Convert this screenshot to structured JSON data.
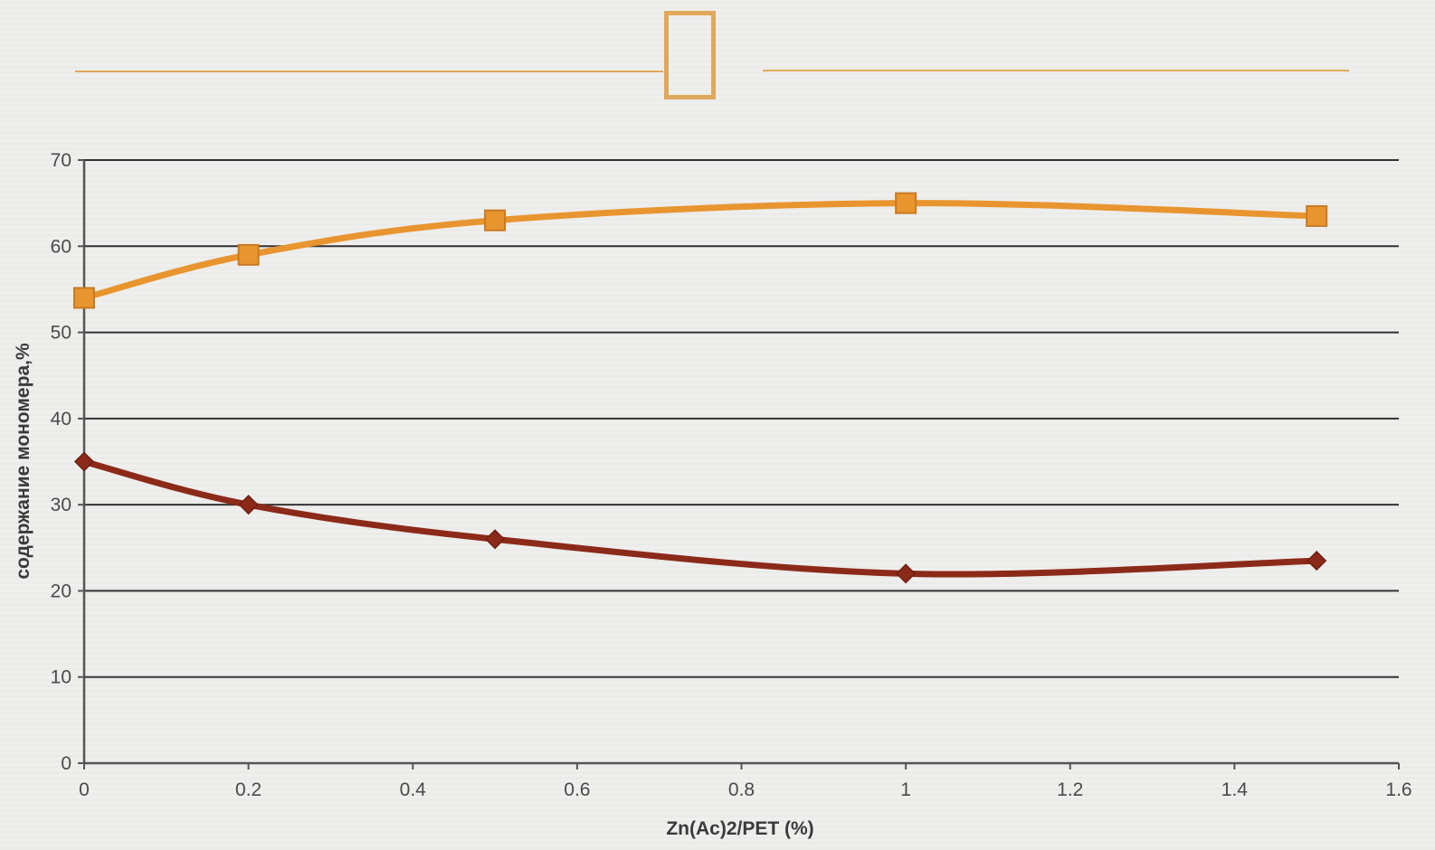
{
  "decoration": {
    "accent_color": "#e0a85c"
  },
  "chart_data": {
    "type": "line",
    "title": "",
    "xlabel": "Zn(Ac)2/PET (%)",
    "ylabel": "содержание мономера,%",
    "xlim": [
      0,
      1.6
    ],
    "ylim": [
      0,
      70
    ],
    "x_ticks": [
      "0",
      "0.2",
      "0.4",
      "0.6",
      "0.8",
      "1",
      "1.2",
      "1.4",
      "1.6"
    ],
    "y_ticks": [
      "0",
      "10",
      "20",
      "30",
      "40",
      "50",
      "60",
      "70"
    ],
    "grid": "horizontal",
    "legend": "none",
    "series": [
      {
        "marker": "square",
        "color": "#e8952f",
        "points": [
          [
            0,
            54
          ],
          [
            0.2,
            59
          ],
          [
            0.5,
            63
          ],
          [
            1.0,
            65
          ],
          [
            1.5,
            63.5
          ]
        ]
      },
      {
        "marker": "diamond",
        "color": "#8c2a1a",
        "points": [
          [
            0,
            35
          ],
          [
            0.2,
            30
          ],
          [
            0.5,
            26
          ],
          [
            1.0,
            22
          ],
          [
            1.5,
            23.5
          ]
        ]
      }
    ]
  }
}
